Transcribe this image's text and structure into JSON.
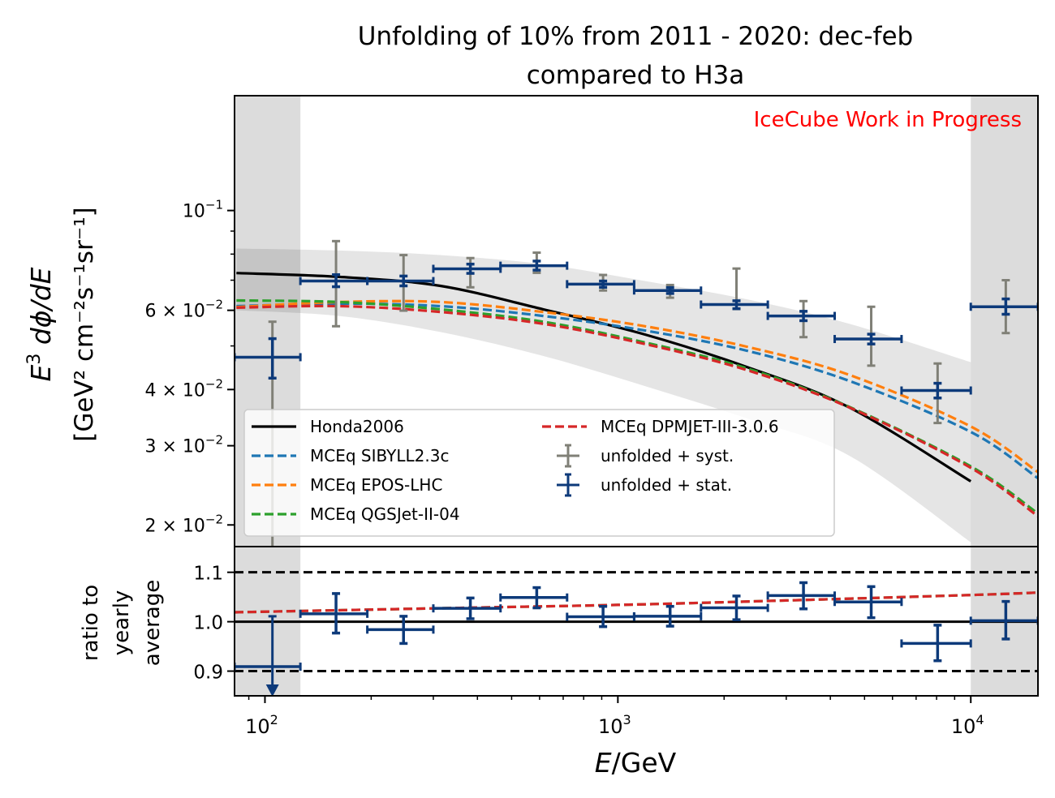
{
  "chart_data": {
    "type": "line",
    "title": "Unfolding of 10% from 2011 - 2020: dec-feb",
    "subtitle": "compared to H3a",
    "annotation": "IceCube Work in Progress",
    "xlabel_italic": "E",
    "xlabel_rest": "/GeV",
    "xscale": "log",
    "xlim": [
      82,
      15500
    ],
    "x_ticks": [
      {
        "value": 100,
        "base": "10",
        "exp": "2"
      },
      {
        "value": 1000,
        "base": "10",
        "exp": "3"
      },
      {
        "value": 10000,
        "base": "10",
        "exp": "4"
      }
    ],
    "excluded_regions": [
      [
        82,
        126
      ],
      [
        10000,
        15500
      ]
    ],
    "top_panel": {
      "ylabel_line1_italic": "E",
      "ylabel_line1_sup": "3",
      "ylabel_line1_rest": " dϕ/dE",
      "ylabel_line2": "[GeV² cm⁻²s⁻¹sr⁻¹]",
      "yscale": "log",
      "ylim": [
        0.0179,
        0.18
      ],
      "y_ticks": [
        {
          "value": 0.1,
          "mant": "",
          "base": "10",
          "exp": "−1"
        },
        {
          "value": 0.06,
          "mant": "6 × ",
          "base": "10",
          "exp": "−2"
        },
        {
          "value": 0.04,
          "mant": "4 × ",
          "base": "10",
          "exp": "−2"
        },
        {
          "value": 0.03,
          "mant": "3 × ",
          "base": "10",
          "exp": "−2"
        },
        {
          "value": 0.02,
          "mant": "2 × ",
          "base": "10",
          "exp": "−2"
        }
      ],
      "y_minor_ticks": [
        0.09,
        0.08,
        0.07,
        0.05
      ],
      "band": {
        "name": "model uncertainty",
        "x": [
          83,
          162,
          314,
          614,
          1194,
          2317,
          4528,
          10000
        ],
        "upper": [
          0.0823,
          0.0815,
          0.0796,
          0.076,
          0.0697,
          0.0635,
          0.056,
          0.046
        ],
        "lower": [
          0.06,
          0.0583,
          0.0537,
          0.0475,
          0.0407,
          0.0345,
          0.0285,
          0.0183
        ]
      },
      "series": [
        {
          "name": "Honda2006",
          "style": "solid",
          "color": "#000000",
          "x": [
            83,
            162,
            314,
            614,
            1194,
            2317,
            4528,
            10000
          ],
          "y": [
            0.0726,
            0.0712,
            0.068,
            0.0603,
            0.053,
            0.0449,
            0.0365,
            0.025
          ]
        },
        {
          "name": "MCEq SIBYLL2.3c",
          "style": "dashed",
          "color": "#1f77b4",
          "x": [
            83,
            162,
            314,
            614,
            1194,
            2317,
            4528,
            10000,
            15500
          ],
          "y": [
            0.0613,
            0.0621,
            0.0613,
            0.0583,
            0.0541,
            0.0488,
            0.0418,
            0.0322,
            0.0254
          ]
        },
        {
          "name": "MCEq EPOS-LHC",
          "style": "dashed",
          "color": "#ff7f0e",
          "x": [
            83,
            162,
            314,
            614,
            1194,
            2317,
            4528,
            10000,
            15500
          ],
          "y": [
            0.061,
            0.0626,
            0.0626,
            0.0595,
            0.0553,
            0.0498,
            0.0431,
            0.0331,
            0.0262
          ]
        },
        {
          "name": "MCEq QGSJet-II-04",
          "style": "dashed",
          "color": "#2ca02c",
          "x": [
            83,
            162,
            314,
            614,
            1194,
            2317,
            4528,
            10000,
            15500
          ],
          "y": [
            0.0631,
            0.0626,
            0.0603,
            0.0566,
            0.0509,
            0.0446,
            0.0366,
            0.027,
            0.0212
          ]
        },
        {
          "name": "MCEq DPMJET-III-3.0.6",
          "style": "dashed",
          "color": "#d62728",
          "x": [
            83,
            162,
            314,
            614,
            1194,
            2317,
            4528,
            10000,
            15500
          ],
          "y": [
            0.0608,
            0.0613,
            0.0595,
            0.056,
            0.0505,
            0.0442,
            0.0365,
            0.0268,
            0.0209
          ]
        }
      ],
      "points": {
        "bins_lo": [
          82,
          126,
          195,
          300,
          465,
          718,
          1112,
          1720,
          2660,
          4115,
          6365,
          10000
        ],
        "bins_hi": [
          126,
          195,
          300,
          465,
          718,
          1112,
          1720,
          2660,
          4115,
          6365,
          10000,
          15500
        ],
        "x": [
          105,
          159,
          247,
          382,
          589,
          908,
          1406,
          2168,
          3357,
          5222,
          8054,
          12566
        ],
        "y": [
          0.0472,
          0.0697,
          0.0697,
          0.0742,
          0.0754,
          0.0686,
          0.0664,
          0.0618,
          0.0583,
          0.0518,
          0.0398,
          0.0611
        ],
        "stat_lo": [
          0.0424,
          0.0677,
          0.068,
          0.0725,
          0.0737,
          0.0675,
          0.0654,
          0.0605,
          0.0569,
          0.0505,
          0.0383,
          0.0588
        ],
        "stat_hi": [
          0.0519,
          0.072,
          0.0715,
          0.076,
          0.0772,
          0.0697,
          0.0674,
          0.063,
          0.0597,
          0.0531,
          0.0413,
          0.0636
        ],
        "syst_lo": [
          0.015,
          0.0553,
          0.0599,
          0.0675,
          0.0727,
          0.0664,
          0.064,
          0.0604,
          0.0523,
          0.0452,
          0.0337,
          0.0534
        ],
        "syst_hi": [
          0.0566,
          0.0855,
          0.0796,
          0.0784,
          0.0806,
          0.0719,
          0.0683,
          0.0743,
          0.0629,
          0.0611,
          0.0457,
          0.07
        ]
      }
    },
    "bottom_panel": {
      "ylabel_lines": [
        "ratio to",
        "yearly",
        "average"
      ],
      "ylim": [
        0.85,
        1.152
      ],
      "y_ticks": [
        {
          "value": 1.1,
          "label": "1.1"
        },
        {
          "value": 1.0,
          "label": "1.0"
        },
        {
          "value": 0.9,
          "label": "0.9"
        }
      ],
      "reference_lines": [
        {
          "value": 1.1,
          "style": "dashed"
        },
        {
          "value": 1.0,
          "style": "solid"
        },
        {
          "value": 0.9,
          "style": "dashed"
        }
      ],
      "model_ratio": {
        "color": "#d62728",
        "x": [
          82,
          300,
          1000,
          3000,
          10000,
          15500
        ],
        "y": [
          1.019,
          1.027,
          1.034,
          1.043,
          1.054,
          1.059
        ]
      },
      "points": {
        "y": [
          0.909,
          1.016,
          0.984,
          1.027,
          1.049,
          1.01,
          1.011,
          1.028,
          1.053,
          1.04,
          0.956,
          1.002
        ],
        "err_lo": [
          0.909,
          0.977,
          0.956,
          1.006,
          1.028,
          0.99,
          0.991,
          1.004,
          1.026,
          1.008,
          0.921,
          0.965
        ],
        "err_hi": [
          1.011,
          1.057,
          1.011,
          1.048,
          1.069,
          1.031,
          1.031,
          1.052,
          1.079,
          1.071,
          0.993,
          1.041
        ],
        "upper_limit_arrow": [
          true,
          false,
          false,
          false,
          false,
          false,
          false,
          false,
          false,
          false,
          false,
          false
        ]
      }
    },
    "legend": {
      "placement": "lower-left",
      "entries": [
        {
          "label": "Honda2006",
          "marker": "solid",
          "color": "#000000"
        },
        {
          "label": "MCEq SIBYLL2.3c",
          "marker": "dashed",
          "color": "#1f77b4"
        },
        {
          "label": "MCEq EPOS-LHC",
          "marker": "dashed",
          "color": "#ff7f0e"
        },
        {
          "label": "MCEq QGSJet-II-04",
          "marker": "dashed",
          "color": "#2ca02c"
        },
        {
          "label": "MCEq DPMJET-III-3.0.6",
          "marker": "dashed",
          "color": "#d62728"
        },
        {
          "label": "unfolded + syst.",
          "marker": "errorbar",
          "color": "#808077"
        },
        {
          "label": "unfolded + stat.",
          "marker": "errorbar",
          "color": "#0d3a7a"
        }
      ]
    },
    "colors": {
      "stat": "#0d3a7a",
      "syst": "#808077",
      "band": "#e6e6e6",
      "excluded": "#dcdcdc",
      "annotation": "#ff0000"
    }
  }
}
